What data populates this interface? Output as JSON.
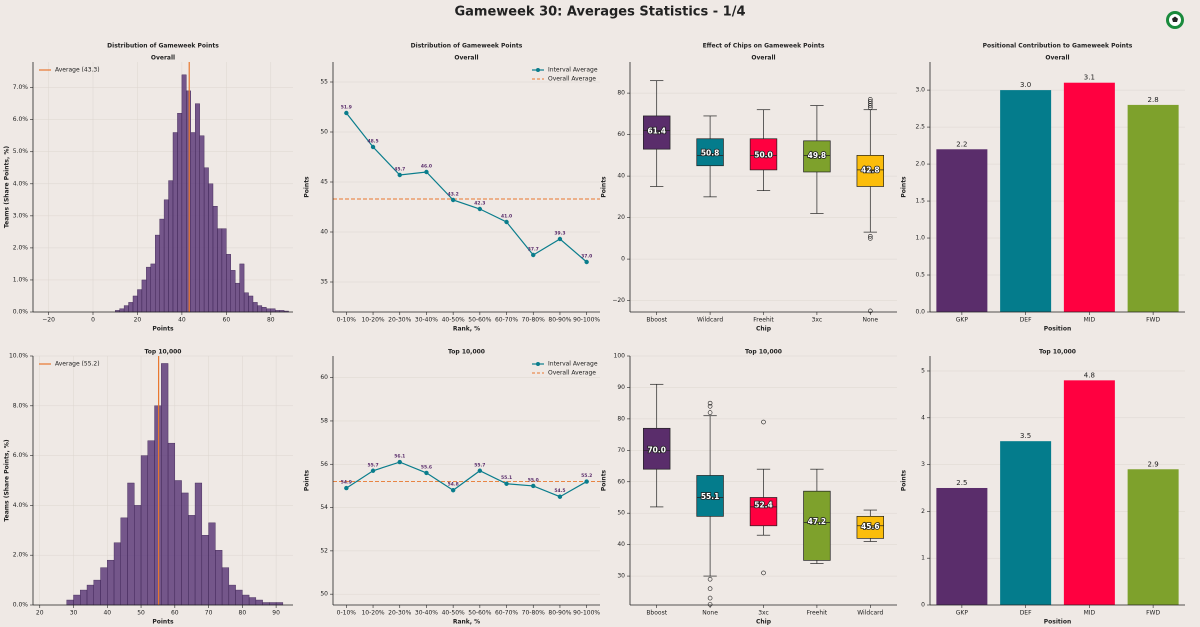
{
  "title": "Gameweek 30: Averages Statistics - 1/4",
  "chart_data": [
    {
      "type": "histogram",
      "title": "Distribution of Gameweek Points",
      "subtitle": "Overall",
      "xlabel": "Points",
      "ylabel": "Teams (Share Points, %)",
      "color": "#5e3c7a",
      "grid": true,
      "bins": [
        10,
        12,
        14,
        16,
        18,
        20,
        22,
        24,
        26,
        28,
        30,
        32,
        34,
        36,
        38,
        40,
        42,
        44,
        46,
        48,
        50,
        52,
        54,
        56,
        58,
        60,
        62,
        64,
        66,
        68,
        70,
        72,
        74,
        76,
        78,
        80,
        82,
        84,
        86,
        88
      ],
      "counts": [
        0.05,
        0.1,
        0.2,
        0.3,
        0.5,
        0.7,
        1.0,
        1.4,
        1.5,
        2.4,
        2.9,
        3.5,
        4.1,
        5.6,
        6.2,
        7.4,
        6.9,
        5.6,
        6.5,
        5.5,
        4.5,
        4.0,
        3.3,
        2.6,
        2.6,
        1.8,
        1.3,
        0.9,
        1.5,
        0.6,
        0.5,
        0.3,
        0.2,
        0.15,
        0.1,
        0.1,
        0.05,
        0.05,
        0.03
      ],
      "reference": {
        "name": "Average (43.3)",
        "value": 43.3,
        "color": "#e8772e"
      },
      "xlim": [
        -27,
        90
      ],
      "xticks": [
        {
          "value": -20,
          "label": "−20"
        },
        0,
        20,
        40,
        60,
        80
      ],
      "ylim": [
        0,
        7.8
      ],
      "yticks": [
        {
          "value": 0,
          "label": "0.0%"
        },
        {
          "value": 1,
          "label": "1.0%"
        },
        {
          "value": 2,
          "label": "2.0%"
        },
        {
          "value": 3,
          "label": "3.0%"
        },
        {
          "value": 4,
          "label": "4.0%"
        },
        {
          "value": 5,
          "label": "5.0%"
        },
        {
          "value": 6,
          "label": "6.0%"
        },
        {
          "value": 7,
          "label": "7.0%"
        }
      ]
    },
    {
      "type": "line",
      "title": "Distribution of Gameweek Points",
      "subtitle": "Overall",
      "xlabel": "Rank, %",
      "ylabel": "Points",
      "grid": true,
      "categories": [
        "0-10%",
        "10-20%",
        "20-30%",
        "30-40%",
        "40-50%",
        "50-60%",
        "60-70%",
        "70-80%",
        "80-90%",
        "90-100%"
      ],
      "series": [
        {
          "name": "Interval Average",
          "color": "#0a7d8c",
          "values": [
            51.9,
            48.5,
            45.7,
            46.0,
            43.2,
            42.3,
            41.0,
            37.7,
            39.3,
            37.0
          ],
          "value_labels": [
            "51.9",
            "48.5",
            "45.7",
            "46.0",
            "43.2",
            "42.3",
            "41.0",
            "37.7",
            "39.3",
            "37.0"
          ]
        }
      ],
      "reference": {
        "name": "Overall Average",
        "value": 43.3,
        "color": "#e8772e"
      },
      "ylim": [
        32,
        57
      ],
      "yticks": [
        35,
        40,
        45,
        50,
        55
      ]
    },
    {
      "type": "box",
      "title": "Effect of Chips on Gameweek Points",
      "subtitle": "Overall",
      "xlabel": "Chip",
      "ylabel": "Points",
      "grid": true,
      "boxes": [
        {
          "name": "Bboost",
          "color": "#5a2d6b",
          "whislo": 35,
          "q1": 53,
          "med": 62,
          "q3": 69,
          "whishi": 86,
          "fliers": [],
          "mean": 61.4,
          "mean_label": "61.4"
        },
        {
          "name": "Wildcard",
          "color": "#047c8c",
          "whislo": 30,
          "q1": 45,
          "med": 50,
          "q3": 58,
          "whishi": 69,
          "fliers": [],
          "mean": 50.8,
          "mean_label": "50.8"
        },
        {
          "name": "Freehit",
          "color": "#ff0040",
          "whislo": 33,
          "q1": 43,
          "med": 50,
          "q3": 58,
          "whishi": 72,
          "fliers": [],
          "mean": 50.0,
          "mean_label": "50.0"
        },
        {
          "name": "3xc",
          "color": "#7ea12c",
          "whislo": 22,
          "q1": 42,
          "med": 50,
          "q3": 57,
          "whishi": 74,
          "fliers": [],
          "mean": 49.8,
          "mean_label": "49.8"
        },
        {
          "name": "None",
          "color": "#fbbd0b",
          "whislo": 13,
          "q1": 35,
          "med": 43,
          "q3": 50,
          "whishi": 72,
          "fliers": [
            10,
            11,
            73,
            74,
            75,
            76,
            77,
            -25
          ],
          "mean": 42.8,
          "mean_label": "42.8"
        }
      ],
      "ylim": [
        -25.5,
        95
      ],
      "yticks": [
        {
          "value": -20,
          "label": "−20"
        },
        0,
        20,
        40,
        60,
        80
      ]
    },
    {
      "type": "bar",
      "title": "Positional Contribution to Gameweek Points",
      "subtitle": "Overall",
      "xlabel": "Position",
      "ylabel": "Points",
      "grid": true,
      "categories": [
        "GKP",
        "DEF",
        "MID",
        "FWD"
      ],
      "values": [
        2.2,
        3.0,
        3.1,
        2.8
      ],
      "value_labels": [
        "2.2",
        "3.0",
        "3.1",
        "2.8"
      ],
      "colors": [
        "#5a2d6b",
        "#047c8c",
        "#ff0040",
        "#7ea12c"
      ],
      "ylim": [
        0,
        3.38
      ],
      "yticks": [
        {
          "value": 0,
          "label": "0.0"
        },
        0.5,
        {
          "value": 1,
          "label": "1.0"
        },
        1.5,
        {
          "value": 2,
          "label": "2.0"
        },
        2.5,
        {
          "value": 3,
          "label": "3.0"
        }
      ]
    },
    {
      "type": "histogram",
      "title": "Top 10,000",
      "xlabel": "Points",
      "ylabel": "Teams (Share Points, %)",
      "color": "#5e3c7a",
      "grid": true,
      "bins": [
        28,
        30,
        32,
        34,
        36,
        38,
        40,
        42,
        44,
        46,
        48,
        50,
        52,
        54,
        56,
        58,
        60,
        62,
        64,
        66,
        68,
        70,
        72,
        74,
        76,
        78,
        80,
        82,
        84,
        86,
        88,
        90,
        92
      ],
      "counts": [
        0.2,
        0.4,
        0.6,
        0.8,
        1.0,
        1.5,
        1.8,
        2.5,
        3.5,
        4.9,
        4.0,
        6.0,
        6.6,
        8.0,
        9.7,
        6.5,
        5.0,
        4.5,
        3.6,
        4.9,
        2.8,
        3.3,
        2.2,
        1.5,
        0.8,
        0.6,
        0.4,
        0.3,
        0.2,
        0.1,
        0.1,
        0.1
      ],
      "reference": {
        "name": "Average (55.2)",
        "value": 55.2,
        "color": "#e8772e"
      },
      "xlim": [
        18,
        95
      ],
      "xticks": [
        20,
        30,
        40,
        50,
        60,
        70,
        80,
        90
      ],
      "ylim": [
        0,
        10
      ],
      "yticks": [
        {
          "value": 0,
          "label": "0.0%"
        },
        {
          "value": 2,
          "label": "2.0%"
        },
        {
          "value": 4,
          "label": "4.0%"
        },
        {
          "value": 6,
          "label": "6.0%"
        },
        {
          "value": 8,
          "label": "8.0%"
        },
        {
          "value": 10,
          "label": "10.0%"
        }
      ]
    },
    {
      "type": "line",
      "title": "Top 10,000",
      "xlabel": "Rank, %",
      "ylabel": "Points",
      "grid": true,
      "categories": [
        "0-10%",
        "10-20%",
        "20-30%",
        "30-40%",
        "40-50%",
        "50-60%",
        "60-70%",
        "70-80%",
        "80-90%",
        "90-100%"
      ],
      "series": [
        {
          "name": "Interval Average",
          "color": "#0a7d8c",
          "values": [
            54.9,
            55.7,
            56.1,
            55.6,
            54.8,
            55.7,
            55.1,
            55.0,
            54.5,
            55.2
          ],
          "value_labels": [
            "54.9",
            "55.7",
            "56.1",
            "55.6",
            "54.8",
            "55.7",
            "55.1",
            "55.0",
            "54.5",
            "55.2"
          ]
        }
      ],
      "reference": {
        "name": "Overall Average",
        "value": 55.2,
        "color": "#e8772e"
      },
      "ylim": [
        49.5,
        61
      ],
      "yticks": [
        50,
        52,
        54,
        56,
        58,
        60
      ]
    },
    {
      "type": "box",
      "title": "Top 10,000",
      "xlabel": "Chip",
      "ylabel": "Points",
      "grid": true,
      "boxes": [
        {
          "name": "Bboost",
          "color": "#5a2d6b",
          "whislo": 52,
          "q1": 64,
          "med": 70,
          "q3": 77,
          "whishi": 91,
          "fliers": [],
          "mean": 70.0,
          "mean_label": "70.0"
        },
        {
          "name": "None",
          "color": "#047c8c",
          "whislo": 30,
          "q1": 49,
          "med": 55,
          "q3": 62,
          "whishi": 81,
          "fliers": [
            29,
            26,
            23,
            21,
            82,
            84,
            85
          ],
          "mean": 55.1,
          "mean_label": "55.1"
        },
        {
          "name": "3xc",
          "color": "#ff0040",
          "whislo": 43,
          "q1": 46,
          "med": 52,
          "q3": 55,
          "whishi": 64,
          "fliers": [
            31,
            79
          ],
          "mean": 52.4,
          "mean_label": "52.4"
        },
        {
          "name": "Freehit",
          "color": "#7ea12c",
          "whislo": 34,
          "q1": 35,
          "med": 47,
          "q3": 57,
          "whishi": 64,
          "fliers": [],
          "mean": 47.2,
          "mean_label": "47.2"
        },
        {
          "name": "Wildcard",
          "color": "#fbbd0b",
          "whislo": 41,
          "q1": 42,
          "med": 46,
          "q3": 49,
          "whishi": 51,
          "fliers": [],
          "mean": 45.6,
          "mean_label": "45.6"
        }
      ],
      "ylim": [
        20.8,
        100
      ],
      "yticks": [
        30,
        40,
        50,
        60,
        70,
        80,
        90,
        100
      ]
    },
    {
      "type": "bar",
      "title": "Top 10,000",
      "xlabel": "Position",
      "ylabel": "Points",
      "grid": true,
      "categories": [
        "GKP",
        "DEF",
        "MID",
        "FWD"
      ],
      "values": [
        2.5,
        3.5,
        4.8,
        2.9
      ],
      "value_labels": [
        "2.5",
        "3.5",
        "4.8",
        "2.9"
      ],
      "colors": [
        "#5a2d6b",
        "#047c8c",
        "#ff0040",
        "#7ea12c"
      ],
      "ylim": [
        0,
        5.32
      ],
      "yticks": [
        0,
        1,
        2,
        3,
        4,
        5
      ]
    }
  ]
}
